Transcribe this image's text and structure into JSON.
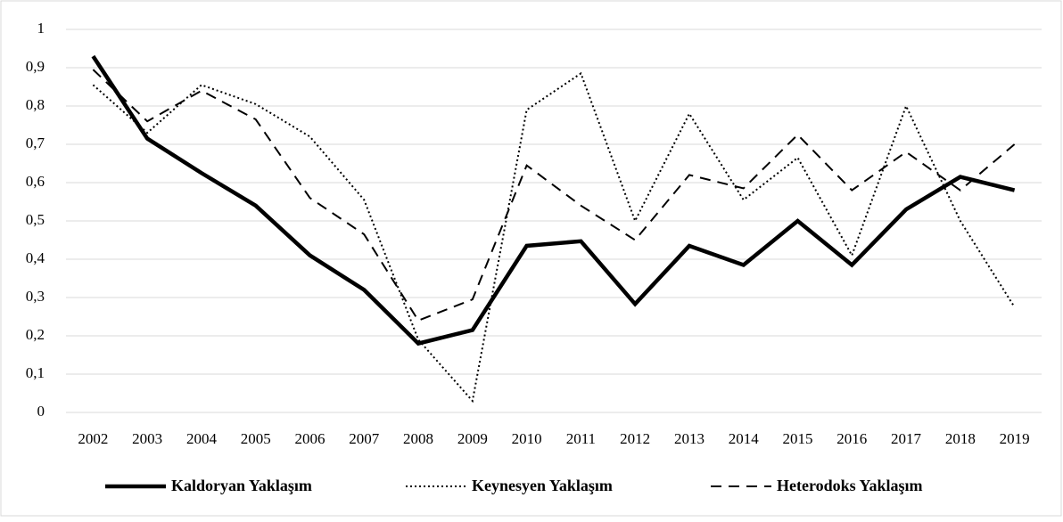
{
  "chart_data": {
    "type": "line",
    "categories": [
      "2002",
      "2003",
      "2004",
      "2005",
      "2006",
      "2007",
      "2008",
      "2009",
      "2010",
      "2011",
      "2012",
      "2013",
      "2014",
      "2015",
      "2016",
      "2017",
      "2018",
      "2019"
    ],
    "series": [
      {
        "name": "Kaldoryan Yaklaşım",
        "color": "#000000",
        "line_style": "solid",
        "values": [
          0.93,
          0.715,
          0.625,
          0.54,
          0.41,
          0.32,
          0.18,
          0.215,
          0.435,
          0.447,
          0.283,
          0.435,
          0.385,
          0.5,
          0.385,
          0.53,
          0.615,
          0.58
        ]
      },
      {
        "name": "Keynesyen Yaklaşım",
        "color": "#000000",
        "line_style": "dotted",
        "values": [
          0.855,
          0.73,
          0.855,
          0.805,
          0.72,
          0.555,
          0.19,
          0.03,
          0.79,
          0.885,
          0.5,
          0.78,
          0.555,
          0.665,
          0.41,
          0.8,
          0.5,
          0.275
        ]
      },
      {
        "name": "Heterodoks Yaklaşım",
        "color": "#000000",
        "line_style": "dashed",
        "values": [
          0.895,
          0.76,
          0.84,
          0.765,
          0.56,
          0.465,
          0.24,
          0.295,
          0.645,
          0.54,
          0.45,
          0.62,
          0.585,
          0.725,
          0.58,
          0.68,
          0.58,
          0.7
        ]
      }
    ],
    "ylim": [
      0,
      1
    ],
    "yticks": [
      0,
      {
        "value": 0.1,
        "label": "0,1"
      },
      {
        "value": 0.2,
        "label": "0,2"
      },
      {
        "value": 0.3,
        "label": "0,3"
      },
      {
        "value": 0.4,
        "label": "0,4"
      },
      {
        "value": 0.5,
        "label": "0,5"
      },
      {
        "value": 0.6,
        "label": "0,6"
      },
      {
        "value": 0.7,
        "label": "0,7"
      },
      {
        "value": 0.8,
        "label": "0,8"
      },
      {
        "value": 0.9,
        "label": "0,9"
      },
      1
    ],
    "grid": true,
    "legend": "bottom"
  }
}
